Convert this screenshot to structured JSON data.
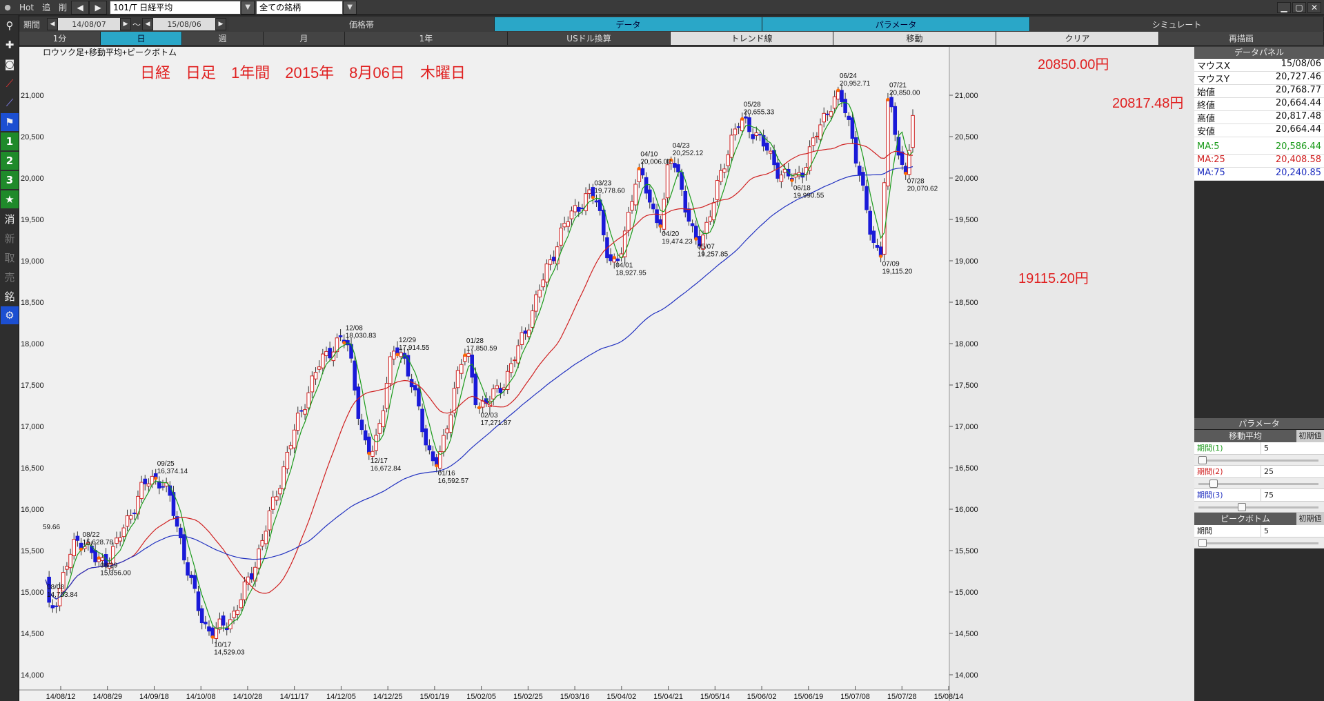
{
  "toolbar": {
    "hot": "Hot",
    "oi": "追",
    "sakujo": "削",
    "symbol": "101/T 日経平均",
    "universe": "全ての銘柄"
  },
  "period": {
    "label": "期間",
    "from": "14/08/07",
    "sep": "～",
    "to": "15/08/06"
  },
  "tabs": [
    "価格帯",
    "データ",
    "パラメータ",
    "シミュレート"
  ],
  "timeframes": [
    "1分",
    "日",
    "週",
    "月"
  ],
  "tools": [
    "1年",
    "USドル換算",
    "トレンド線",
    "移動",
    "クリア",
    "再描画"
  ],
  "left_tools": [
    "search-icon",
    "crosshair-icon",
    "camera-icon",
    "line-chart-icon",
    "chart-icon",
    "flag-icon",
    "1",
    "2",
    "3",
    "★",
    "消",
    "新",
    "取",
    "売",
    "銘",
    "gear-icon"
  ],
  "chart_data": {
    "type": "candlestick",
    "subtitle": "ロウソク足+移動平均+ピークボトム",
    "headline": "日経　日足　1年間　2015年　8月06日　木曜日",
    "yticks": [
      "21,000",
      "20,500",
      "20,000",
      "19,500",
      "19,000",
      "18,500",
      "18,000",
      "17,500",
      "17,000",
      "16,500",
      "16,000",
      "15,500",
      "15,000",
      "14,500",
      "14,000"
    ],
    "ylim": [
      14000,
      21000
    ],
    "xticks": [
      "14/08/12",
      "14/08/29",
      "14/09/18",
      "14/10/08",
      "14/10/28",
      "14/11/17",
      "14/12/05",
      "14/12/25",
      "15/01/19",
      "15/02/05",
      "15/02/25",
      "15/03/16",
      "15/04/02",
      "15/04/21",
      "15/05/14",
      "15/06/02",
      "15/06/19",
      "15/07/08",
      "15/07/28",
      "15/08/14"
    ],
    "annotations_red": [
      "20850.00円",
      "20817.48円",
      "19115.20円"
    ],
    "peaks": [
      {
        "date": "08/08",
        "value": "14,753.84"
      },
      {
        "date": "08/22",
        "value": "15,628.78"
      },
      {
        "date": "08/29",
        "value": "15,356.00"
      },
      {
        "date": "09/25",
        "value": "16,374.14"
      },
      {
        "date": "10/17",
        "value": "14,529.03"
      },
      {
        "date": "12/08",
        "value": "18,030.83"
      },
      {
        "date": "12/17",
        "value": "16,672.84"
      },
      {
        "date": "12/29",
        "value": "17,914.55"
      },
      {
        "date": "01/16",
        "value": "16,592.57"
      },
      {
        "date": "01/28",
        "value": "17,850.59"
      },
      {
        "date": "02/03",
        "value": "17,271.87"
      },
      {
        "date": "03/23",
        "value": "19,778.60"
      },
      {
        "date": "04/01",
        "value": "18,927.95"
      },
      {
        "date": "04/10",
        "value": "20,006.00"
      },
      {
        "date": "04/20",
        "value": "19,474.23"
      },
      {
        "date": "04/23",
        "value": "20,252.12"
      },
      {
        "date": "05/07",
        "value": "19,257.85"
      },
      {
        "date": "05/28",
        "value": "20,655.33"
      },
      {
        "date": "06/18",
        "value": "19,990.55"
      },
      {
        "date": "06/24",
        "value": "20,952.71"
      },
      {
        "date": "07/09",
        "value": "19,115.20"
      },
      {
        "date": "07/21",
        "value": "20,850.00"
      },
      {
        "date": "07/28",
        "value": "20,070.62"
      }
    ],
    "left_edge_label": "59.66",
    "series": [
      {
        "name": "MA:5",
        "color": "#1a9a1a"
      },
      {
        "name": "MA:25",
        "color": "#d02020"
      },
      {
        "name": "MA:75",
        "color": "#2030c0"
      }
    ]
  },
  "data_panel": {
    "title": "データパネル",
    "rows": [
      {
        "k": "マウスX",
        "v": "15/08/06"
      },
      {
        "k": "マウスY",
        "v": "20,727.46"
      },
      {
        "k": "始値",
        "v": "20,768.77"
      },
      {
        "k": "終値",
        "v": "20,664.44"
      },
      {
        "k": "高値",
        "v": "20,817.48"
      },
      {
        "k": "安値",
        "v": "20,664.44"
      }
    ],
    "ma": [
      {
        "k": "MA:5",
        "v": "20,586.44",
        "color": "#1a9a1a"
      },
      {
        "k": "MA:25",
        "v": "20,408.58",
        "color": "#d02020"
      },
      {
        "k": "MA:75",
        "v": "20,240.85",
        "color": "#2030c0"
      }
    ]
  },
  "params": {
    "title": "パラメータ",
    "ma_title": "移動平均",
    "reset": "初期値",
    "periods": [
      {
        "k": "期間(1)",
        "v": "5",
        "color": "#1a9a1a",
        "level": 0.0
      },
      {
        "k": "期間(2)",
        "v": "25",
        "color": "#d02020",
        "level": 0.1
      },
      {
        "k": "期間(3)",
        "v": "75",
        "color": "#2030c0",
        "level": 0.35
      }
    ],
    "pb_title": "ピークボトム",
    "pb_reset": "初期値",
    "pb_label": "期間",
    "pb_value": "5",
    "pb_level": 0.0
  }
}
